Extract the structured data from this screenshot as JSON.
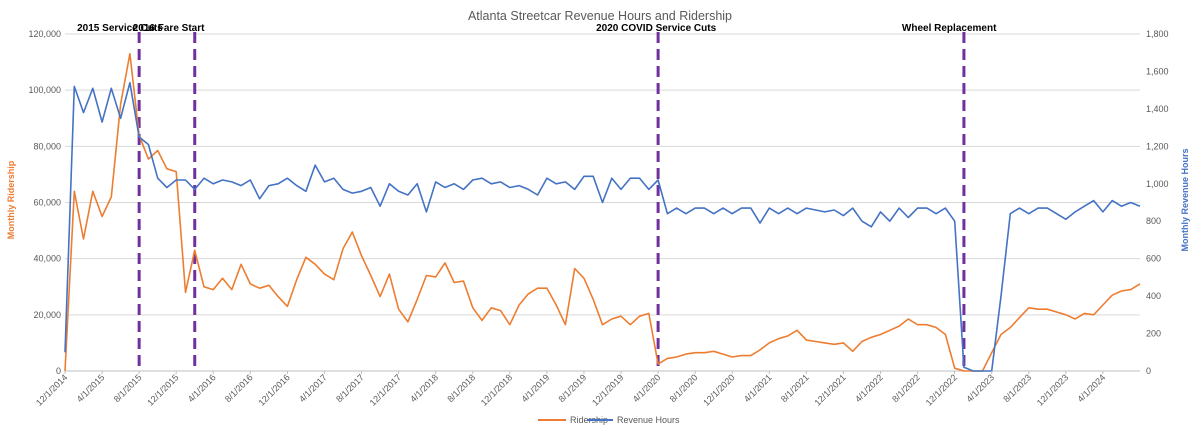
{
  "chart_data": {
    "type": "line",
    "title": "Atlanta Streetcar Revenue Hours and Ridership",
    "ylabel": "Monthly Ridership",
    "y2label": "Monthly Revenue Hours",
    "ylim": [
      0,
      120000
    ],
    "y2lim": [
      0,
      1800
    ],
    "y_ticks": [
      "0",
      "20,000",
      "40,000",
      "60,000",
      "80,000",
      "100,000",
      "120,000"
    ],
    "y2_ticks": [
      "0",
      "200",
      "400",
      "600",
      "800",
      "1,000",
      "1,200",
      "1,400",
      "1,600",
      "1,800"
    ],
    "x_start": "12/1/2014",
    "x_tick_labels": [
      "12/1/2014",
      "4/1/2015",
      "8/1/2015",
      "12/1/2015",
      "4/1/2016",
      "8/1/2016",
      "12/1/2016",
      "4/1/2017",
      "8/1/2017",
      "12/1/2017",
      "4/1/2018",
      "8/1/2018",
      "12/1/2018",
      "4/1/2019",
      "8/1/2019",
      "12/1/2019",
      "4/1/2020",
      "8/1/2020",
      "12/1/2020",
      "4/1/2021",
      "8/1/2021",
      "12/1/2021",
      "4/1/2022",
      "8/1/2022",
      "12/1/2022",
      "4/1/2023",
      "8/1/2023",
      "12/1/2023",
      "4/1/2024"
    ],
    "x_tick_every_months": 4,
    "total_months": 117,
    "annotations": [
      {
        "label": "2015 Service Cuts",
        "month_index": 8
      },
      {
        "label": "2016 Fare Start",
        "month_index": 14
      },
      {
        "label": "2020 COVID Service Cuts",
        "month_index": 64
      },
      {
        "label": "Wheel Replacement",
        "month_index": 97
      }
    ],
    "series": [
      {
        "name": "Ridership",
        "color": "#ED7D31",
        "axis": "left",
        "values": [
          0,
          64000,
          47000,
          64000,
          55000,
          62000,
          95000,
          113000,
          84000,
          75500,
          78500,
          72000,
          71000,
          28000,
          43000,
          30000,
          29000,
          33000,
          29000,
          38000,
          31000,
          29500,
          30500,
          26500,
          23000,
          32500,
          40500,
          38000,
          34500,
          32500,
          43500,
          49500,
          41000,
          34000,
          26500,
          34500,
          22000,
          17500,
          25500,
          34000,
          33500,
          38500,
          31500,
          32000,
          22500,
          18000,
          22500,
          21500,
          16500,
          23500,
          27500,
          29500,
          29500,
          23500,
          16500,
          36500,
          33000,
          25500,
          16500,
          18500,
          19500,
          16500,
          19500,
          20500,
          2500,
          4500,
          5000,
          6000,
          6500,
          6500,
          7000,
          6000,
          5000,
          5500,
          5500,
          7500,
          10000,
          11500,
          12500,
          14500,
          11000,
          10500,
          10000,
          9500,
          10000,
          7000,
          10500,
          12000,
          13000,
          14500,
          16000,
          18500,
          16500,
          16500,
          15500,
          13000,
          1000,
          0,
          0,
          0,
          6500,
          13000,
          15500,
          19000,
          22500,
          22000,
          22000,
          21000,
          20000,
          18500,
          20500,
          20000,
          23500,
          27000,
          28500,
          29000,
          31000
        ]
      },
      {
        "name": "Revenue Hours",
        "color": "#4472C4",
        "axis": "right",
        "values": [
          100,
          1520,
          1380,
          1510,
          1330,
          1510,
          1350,
          1540,
          1250,
          1210,
          1030,
          980,
          1020,
          1020,
          970,
          1030,
          1000,
          1020,
          1010,
          990,
          1020,
          920,
          990,
          1000,
          1030,
          990,
          960,
          1100,
          1010,
          1030,
          970,
          950,
          960,
          980,
          880,
          1000,
          960,
          940,
          1000,
          850,
          1010,
          980,
          1000,
          970,
          1020,
          1030,
          1000,
          1010,
          980,
          990,
          970,
          940,
          1030,
          1000,
          1010,
          970,
          1040,
          1040,
          900,
          1030,
          970,
          1030,
          1030,
          970,
          1020,
          840,
          870,
          840,
          870,
          870,
          840,
          870,
          840,
          870,
          870,
          790,
          870,
          840,
          870,
          840,
          870,
          860,
          850,
          860,
          830,
          870,
          800,
          770,
          850,
          800,
          870,
          820,
          870,
          870,
          840,
          870,
          800,
          20,
          0,
          0,
          0,
          400,
          840,
          870,
          840,
          870,
          870,
          840,
          810,
          850,
          880,
          910,
          850,
          910,
          880,
          900,
          880
        ]
      }
    ]
  }
}
